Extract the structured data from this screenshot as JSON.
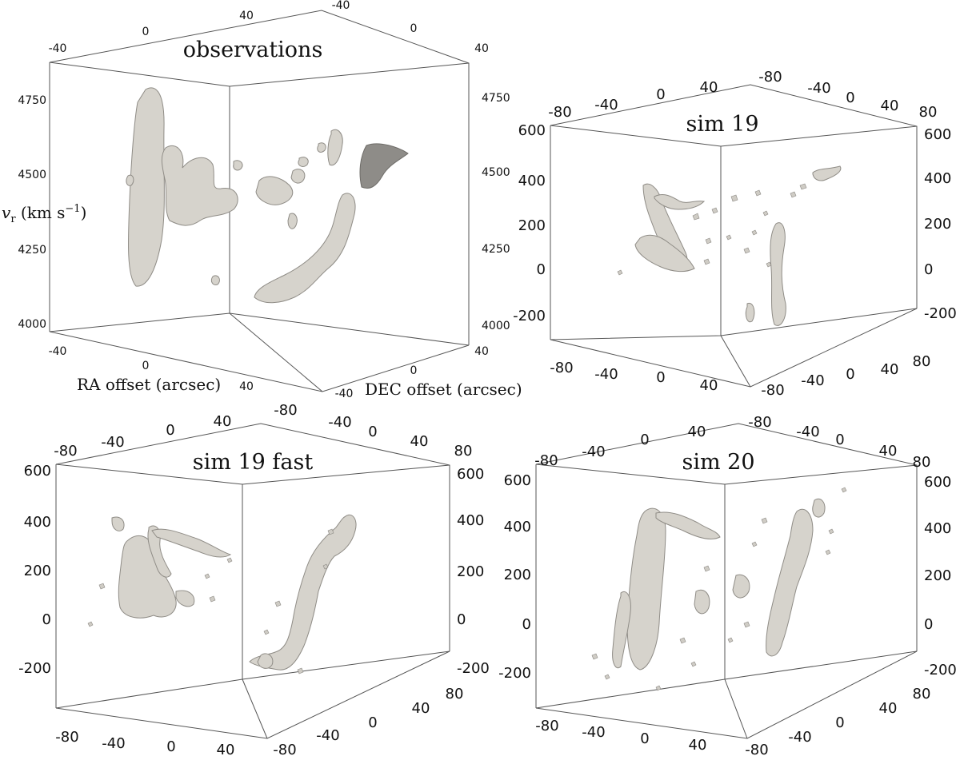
{
  "panels": [
    {
      "id": "observations",
      "title": "observations",
      "vlabel": "v_r (km s^-1)",
      "vlabel_main": "v",
      "vlabel_sub": "r",
      "vlabel_unit": "(km s",
      "vlabel_exp": "−1",
      "vlabel_close": ")",
      "xlabel": "RA offset (arcsec)",
      "ylabel": "DEC offset (arcsec)",
      "v_ticks": [
        "4750",
        "4500",
        "4250",
        "4000"
      ],
      "ra_ticks_bottom": [
        "-40",
        "0",
        "40"
      ],
      "dec_ticks_bottom": [
        "40",
        "0",
        "-40"
      ],
      "ra_ticks_top": [
        "-40",
        "0",
        "40"
      ],
      "dec_ticks_top": [
        "-40",
        "0",
        "40"
      ]
    },
    {
      "id": "sim19",
      "title": "sim 19",
      "v_ticks": [
        "600",
        "400",
        "200",
        "0",
        "-200"
      ],
      "ra_ticks_bottom": [
        "-80",
        "-40",
        "0",
        "40"
      ],
      "dec_ticks_bottom": [
        "80",
        "40",
        "0",
        "-40",
        "-80"
      ],
      "ra_ticks_top": [
        "-80",
        "-40",
        "0",
        "40",
        "-80"
      ],
      "dec_ticks_top": [
        "-40",
        "0",
        "40",
        "80"
      ]
    },
    {
      "id": "sim19fast",
      "title": "sim 19 fast",
      "v_ticks": [
        "600",
        "400",
        "200",
        "0",
        "-200"
      ],
      "ra_ticks_bottom": [
        "-80",
        "-40",
        "0",
        "40"
      ],
      "dec_ticks_bottom": [
        "80",
        "40",
        "0",
        "-40",
        "-80"
      ],
      "ra_ticks_top": [
        "-80",
        "-40",
        "0",
        "40",
        "-80"
      ],
      "dec_ticks_top": [
        "-40",
        "0",
        "40",
        "80"
      ]
    },
    {
      "id": "sim20",
      "title": "sim 20",
      "v_ticks": [
        "600",
        "400",
        "200",
        "0",
        "-200"
      ],
      "ra_ticks_bottom": [
        "-80",
        "-40",
        "0",
        "40"
      ],
      "dec_ticks_bottom": [
        "80",
        "40",
        "0",
        "-40",
        "-80"
      ],
      "ra_ticks_top": [
        "-80",
        "-40",
        "0",
        "40",
        "-80"
      ],
      "dec_ticks_top": [
        "-40",
        "0",
        "40",
        "80"
      ]
    }
  ],
  "colors": {
    "surface": "#d6d3cc",
    "surface_shadow": "#8e8c88",
    "edge": "#555555"
  }
}
